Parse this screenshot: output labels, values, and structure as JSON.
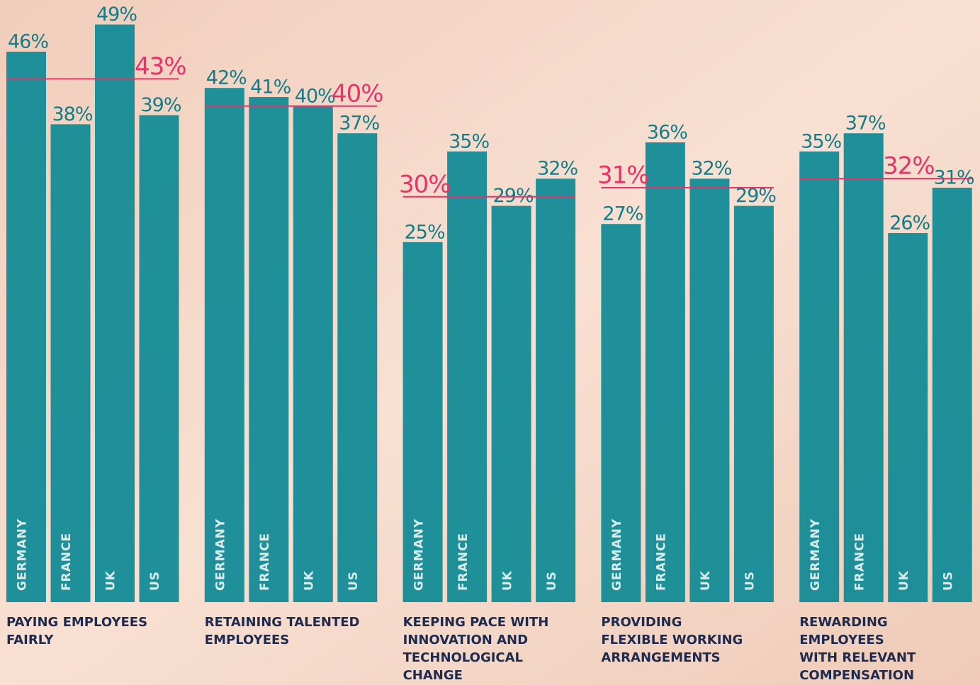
{
  "chart_data": [
    {
      "type": "bar",
      "title": [
        "PAYING EMPLOYEES",
        "FAIRLY"
      ],
      "categories": [
        "GERMANY",
        "FRANCE",
        "UK",
        "US"
      ],
      "values": [
        46,
        38,
        49,
        39
      ],
      "value_labels": [
        "46%",
        "38%",
        "49%",
        "39%"
      ],
      "average": {
        "value": 43,
        "label": "43%"
      },
      "ylim": [
        -14.7,
        51.7
      ],
      "color": "#0e8a94",
      "average_color": "#e8336a"
    },
    {
      "type": "bar",
      "title": [
        "RETAINING TALENTED",
        "EMPLOYEES"
      ],
      "categories": [
        "GERMANY",
        "FRANCE",
        "UK",
        "US"
      ],
      "values": [
        42,
        41,
        40,
        37
      ],
      "value_labels": [
        "42%",
        "41%",
        "40%",
        "37%"
      ],
      "average": {
        "value": 40,
        "label": "40%"
      },
      "ylim": [
        -14.7,
        51.7
      ],
      "color": "#0e8a94",
      "average_color": "#e8336a"
    },
    {
      "type": "bar",
      "title": [
        "KEEPING PACE WITH",
        "INNOVATION AND",
        "TECHNOLOGICAL",
        "CHANGE"
      ],
      "categories": [
        "GERMANY",
        "FRANCE",
        "UK",
        "US"
      ],
      "values": [
        25,
        35,
        29,
        32
      ],
      "value_labels": [
        "25%",
        "35%",
        "29%",
        "32%"
      ],
      "average": {
        "value": 30,
        "label": "30%"
      },
      "ylim": [
        -14.7,
        51.7
      ],
      "color": "#0e8a94",
      "average_color": "#e8336a"
    },
    {
      "type": "bar",
      "title": [
        "PROVIDING",
        "FLEXIBLE WORKING",
        "ARRANGEMENTS"
      ],
      "categories": [
        "GERMANY",
        "FRANCE",
        "UK",
        "US"
      ],
      "values": [
        27,
        36,
        32,
        29
      ],
      "value_labels": [
        "27%",
        "36%",
        "32%",
        "29%"
      ],
      "average": {
        "value": 31,
        "label": "31%"
      },
      "ylim": [
        -14.7,
        51.7
      ],
      "color": "#0e8a94",
      "average_color": "#e8336a"
    },
    {
      "type": "bar",
      "title": [
        "REWARDING",
        "EMPLOYEES",
        "WITH RELEVANT",
        "COMPENSATION"
      ],
      "categories": [
        "GERMANY",
        "FRANCE",
        "UK",
        "US"
      ],
      "values": [
        35,
        37,
        26,
        31
      ],
      "value_labels": [
        "35%",
        "37%",
        "26%",
        "31%"
      ],
      "average": {
        "value": 32,
        "label": "32%"
      },
      "ylim": [
        -14.7,
        51.7
      ],
      "color": "#0e8a94",
      "average_color": "#e8336a"
    }
  ]
}
